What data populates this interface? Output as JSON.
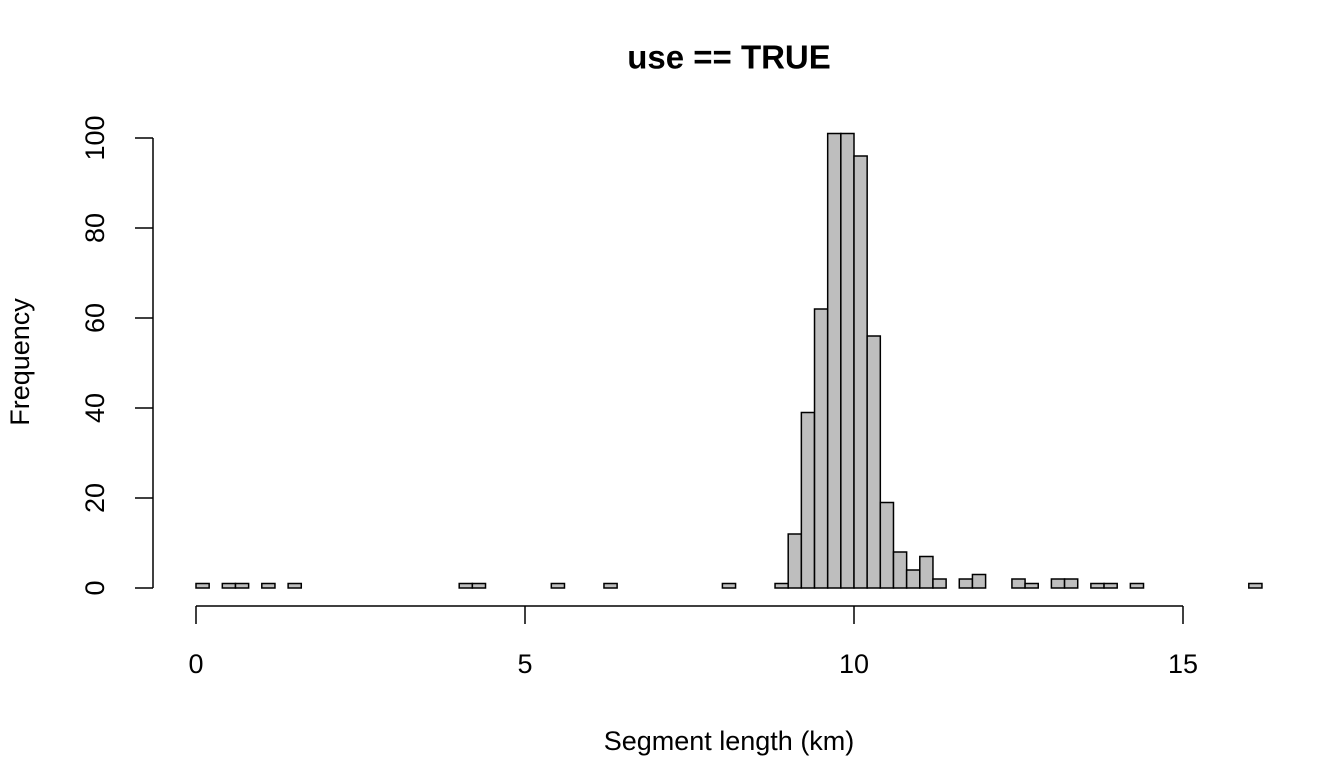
{
  "chart_data": {
    "type": "histogram",
    "title": "use == TRUE",
    "x_label": "Segment length (km)",
    "y_label": "Frequency",
    "color": "#bebebe",
    "bins": [
      0,
      0.2,
      0.4,
      0.6,
      0.8,
      1,
      1.2,
      1.4,
      1.6,
      1.8,
      2,
      2.2,
      2.4,
      2.6,
      2.8,
      3,
      3.2,
      3.4,
      3.6,
      3.8,
      4,
      4.2,
      4.4,
      4.6,
      4.8,
      5,
      5.2,
      5.4,
      5.6,
      5.8,
      6,
      6.2,
      6.4,
      6.6,
      6.8,
      7,
      7.2,
      7.4,
      7.6,
      7.8,
      8,
      8.2,
      8.4,
      8.6,
      8.8,
      9,
      9.2,
      9.4,
      9.6,
      9.8,
      10,
      10.2,
      10.4,
      10.6,
      10.8,
      11,
      11.2,
      11.4,
      11.6,
      11.8,
      12,
      12.2,
      12.4,
      12.6,
      12.8,
      13,
      13.2,
      13.4,
      13.6,
      13.8,
      14,
      14.2,
      14.4,
      14.6,
      14.8,
      15,
      15.2,
      15.4,
      15.6,
      15.8,
      16,
      16.2
    ],
    "counts": [
      1,
      0,
      1,
      1,
      0,
      1,
      0,
      1,
      0,
      0,
      0,
      0,
      0,
      0,
      0,
      0,
      0,
      0,
      0,
      0,
      1,
      1,
      0,
      0,
      0,
      0,
      0,
      1,
      0,
      0,
      0,
      1,
      0,
      0,
      0,
      0,
      0,
      0,
      0,
      0,
      1,
      0,
      0,
      0,
      1,
      12,
      39,
      62,
      101,
      101,
      96,
      56,
      19,
      8,
      4,
      7,
      2,
      0,
      2,
      3,
      0,
      0,
      2,
      1,
      0,
      2,
      2,
      0,
      1,
      1,
      0,
      1,
      0,
      0,
      0,
      0,
      0,
      0,
      0,
      0,
      1
    ],
    "xlim": [
      0,
      15
    ],
    "xticks": [
      0,
      5,
      10,
      15
    ],
    "ylim": [
      0,
      100
    ],
    "yticks": [
      0,
      20,
      40,
      60,
      80,
      100
    ]
  }
}
